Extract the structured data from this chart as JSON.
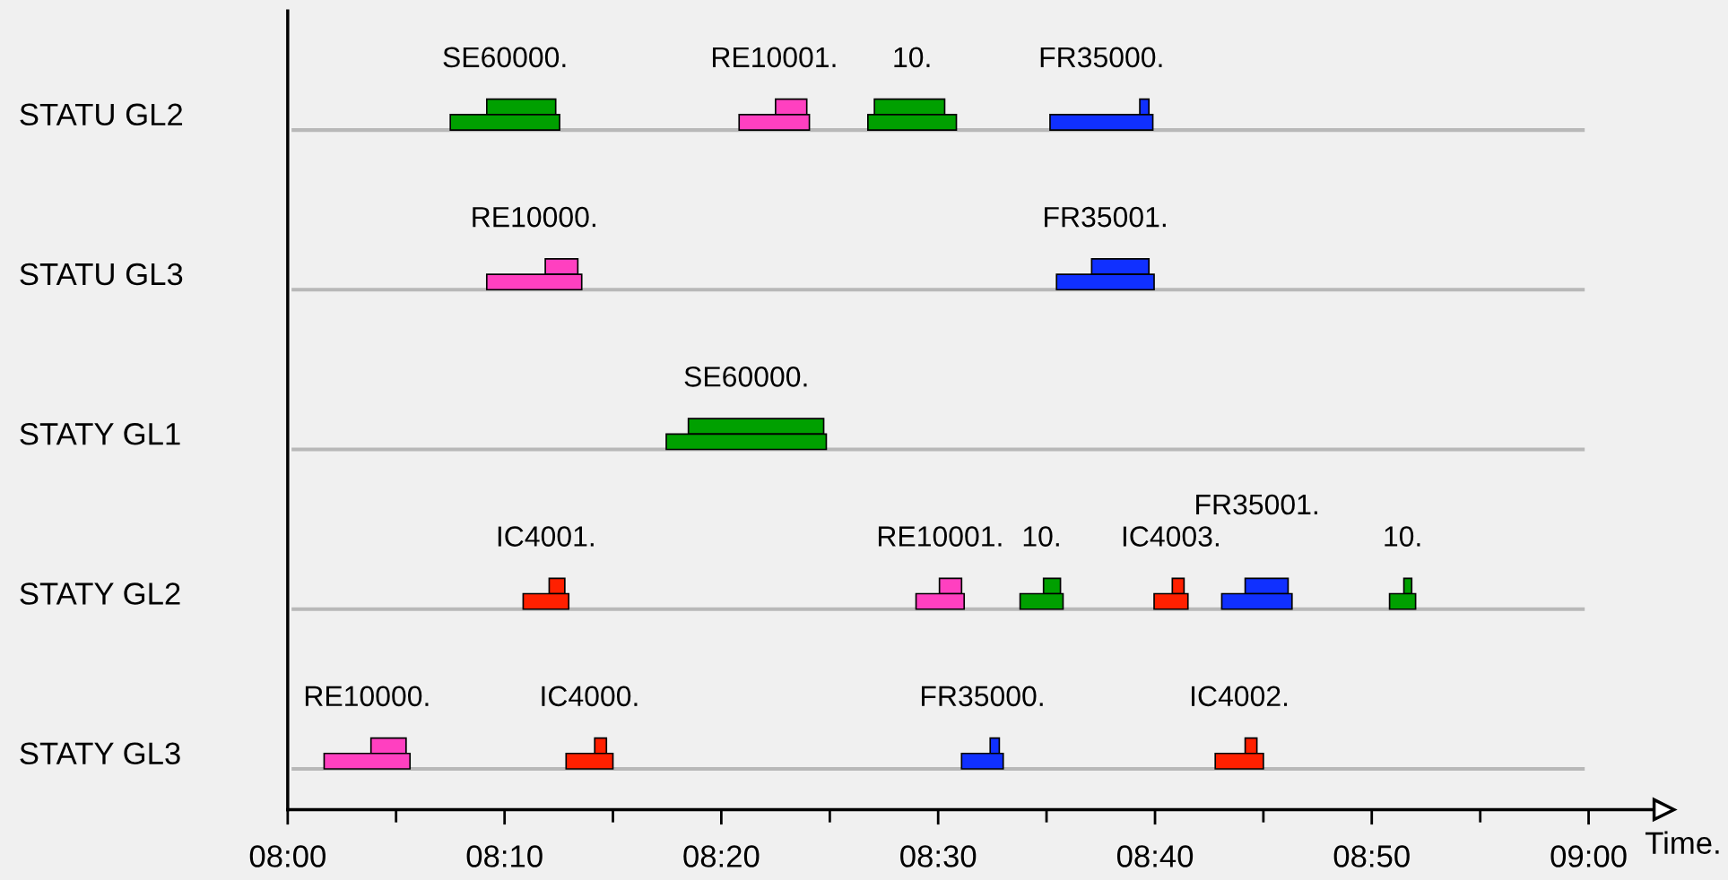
{
  "chart_data": {
    "type": "bar",
    "orientation": "horizontal",
    "grid": "y",
    "xlabel": "Time.",
    "categories": [
      null,
      "STATU GL2",
      null,
      "STATU GL3",
      null,
      "STATY GL1",
      null,
      "STATY GL2",
      null,
      "STATY GL3"
    ],
    "xlim": [
      8,
      9.058
    ],
    "xticks": [
      {
        "value": 8,
        "label": "08:00"
      },
      {
        "value": 8.0833,
        "label": null
      },
      {
        "value": 8.1667,
        "label": "08:10"
      },
      {
        "value": 8.25,
        "label": null
      },
      {
        "value": 8.3333,
        "label": "08:20"
      },
      {
        "value": 8.4167,
        "label": null
      },
      {
        "value": 8.5,
        "label": "08:30"
      },
      {
        "value": 8.5833,
        "label": null
      },
      {
        "value": 8.6667,
        "label": "08:40"
      },
      {
        "value": 8.75,
        "label": null
      },
      {
        "value": 8.8333,
        "label": "08:50"
      },
      {
        "value": 8.9167,
        "label": null
      },
      {
        "value": 9,
        "label": "09:00"
      }
    ],
    "series": [
      {
        "name": "SE60000.",
        "color": "#00a000",
        "values": [
          0.053,
          0.084,
          null,
          null,
          null,
          null,
          null,
          null,
          null,
          null
        ],
        "base": [
          8.153,
          8.125,
          null,
          null,
          null,
          null,
          null,
          null,
          null,
          null
        ]
      },
      {
        "name": "RE10001.",
        "color": "#ff40c0",
        "values": [
          0.024,
          0.054,
          null,
          null,
          null,
          null,
          null,
          null,
          null,
          null
        ],
        "base": [
          8.375,
          8.347,
          null,
          null,
          null,
          null,
          null,
          null,
          null,
          null
        ]
      },
      {
        "name": "10.",
        "color": "#00a000",
        "values": [
          0.054,
          0.068,
          null,
          null,
          null,
          null,
          null,
          null,
          null,
          null
        ],
        "base": [
          8.451,
          8.446,
          null,
          null,
          null,
          null,
          null,
          null,
          null,
          null
        ]
      },
      {
        "name": "FR35000.",
        "color": "#1030ff",
        "values": [
          0.007,
          0.079,
          null,
          null,
          null,
          null,
          null,
          null,
          null,
          null
        ],
        "base": [
          8.655,
          8.586,
          null,
          null,
          null,
          null,
          null,
          null,
          null,
          null
        ]
      },
      {
        "name": "RE10000.",
        "color": "#ff40c0",
        "values": [
          null,
          null,
          0.025,
          0.073,
          null,
          null,
          null,
          null,
          null,
          null
        ],
        "base": [
          null,
          null,
          8.198,
          8.153,
          null,
          null,
          null,
          null,
          null,
          null
        ]
      },
      {
        "name": "FR35001.",
        "color": "#1030ff",
        "values": [
          null,
          null,
          0.044,
          0.075,
          null,
          null,
          null,
          null,
          null,
          null
        ],
        "base": [
          null,
          null,
          8.618,
          8.591,
          null,
          null,
          null,
          null,
          null,
          null
        ]
      },
      {
        "name": "SE60000.",
        "color": "#00a000",
        "values": [
          null,
          null,
          null,
          null,
          0.104,
          0.123,
          null,
          null,
          null,
          null
        ],
        "base": [
          null,
          null,
          null,
          null,
          8.308,
          8.291,
          null,
          null,
          null,
          null
        ]
      },
      {
        "name": "IC4001.",
        "color": "#ff2000",
        "values": [
          null,
          null,
          null,
          null,
          null,
          null,
          0.012,
          0.035,
          null,
          null
        ],
        "base": [
          null,
          null,
          null,
          null,
          null,
          null,
          8.201,
          8.181,
          null,
          null
        ]
      },
      {
        "name": "RE10001.",
        "color": "#ff40c0",
        "values": [
          null,
          null,
          null,
          null,
          null,
          null,
          0.017,
          0.037,
          null,
          null
        ],
        "base": [
          null,
          null,
          null,
          null,
          null,
          null,
          8.501,
          8.483,
          null,
          null
        ]
      },
      {
        "name": "10.",
        "color": "#00a000",
        "values": [
          null,
          null,
          null,
          null,
          null,
          null,
          0.013,
          0.033,
          null,
          null
        ],
        "base": [
          null,
          null,
          null,
          null,
          null,
          null,
          8.581,
          8.563,
          null,
          null
        ]
      },
      {
        "name": "IC4003.",
        "color": "#ff2000",
        "values": [
          null,
          null,
          null,
          null,
          null,
          null,
          0.009,
          0.026,
          null,
          null
        ],
        "base": [
          null,
          null,
          null,
          null,
          null,
          null,
          8.68,
          8.666,
          null,
          null
        ]
      },
      {
        "name": "FR35001.",
        "color": "#1030ff",
        "values": [
          null,
          null,
          null,
          null,
          null,
          null,
          0.033,
          0.054,
          null,
          null
        ],
        "base": [
          null,
          null,
          null,
          null,
          null,
          null,
          8.736,
          8.718,
          null,
          null
        ]
      },
      {
        "name": "10.",
        "color": "#00a000",
        "values": [
          null,
          null,
          null,
          null,
          null,
          null,
          0.006,
          0.02,
          null,
          null
        ],
        "base": [
          null,
          null,
          null,
          null,
          null,
          null,
          8.858,
          8.847,
          null,
          null
        ]
      },
      {
        "name": "RE10000.",
        "color": "#ff40c0",
        "values": [
          null,
          null,
          null,
          null,
          null,
          null,
          null,
          null,
          0.027,
          0.066
        ],
        "base": [
          null,
          null,
          null,
          null,
          null,
          null,
          null,
          null,
          8.064,
          8.028
        ]
      },
      {
        "name": "IC4000.",
        "color": "#ff2000",
        "values": [
          null,
          null,
          null,
          null,
          null,
          null,
          null,
          null,
          0.009,
          0.036
        ],
        "base": [
          null,
          null,
          null,
          null,
          null,
          null,
          null,
          null,
          8.236,
          8.214
        ]
      },
      {
        "name": "FR35000.",
        "color": "#1030ff",
        "values": [
          null,
          null,
          null,
          null,
          null,
          null,
          null,
          null,
          0.007,
          0.032
        ],
        "base": [
          null,
          null,
          null,
          null,
          null,
          null,
          null,
          null,
          8.54,
          8.518
        ]
      },
      {
        "name": "IC4002.",
        "color": "#ff2000",
        "values": [
          null,
          null,
          null,
          null,
          null,
          null,
          null,
          null,
          0.009,
          0.037
        ],
        "base": [
          null,
          null,
          null,
          null,
          null,
          null,
          null,
          null,
          8.736,
          8.713
        ]
      }
    ]
  }
}
